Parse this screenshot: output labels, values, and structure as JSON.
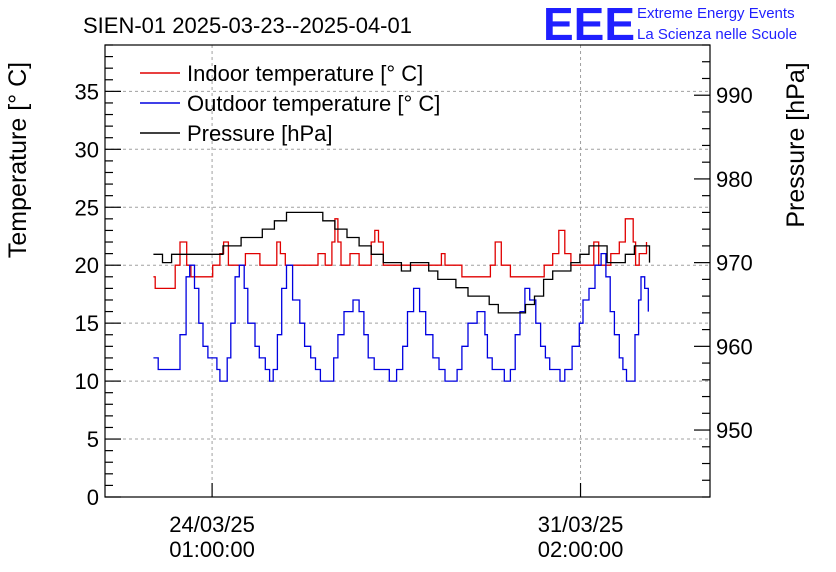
{
  "chart_data": {
    "type": "line",
    "title": "SIEN-01 2025-03-23--2025-04-01",
    "ylabel": "Temperature [° C]",
    "y2label": "Pressure [hPa]",
    "ylim": [
      0,
      39
    ],
    "y2lim": [
      942,
      996
    ],
    "xlim": [
      0,
      1
    ],
    "yticks": [
      0,
      5,
      10,
      15,
      20,
      25,
      30,
      35
    ],
    "y2ticks": [
      950,
      960,
      970,
      980,
      990
    ],
    "xticks": [
      {
        "pos": 0.177,
        "line1": "24/03/25",
        "line2": "01:00:00"
      },
      {
        "pos": 0.786,
        "line1": "31/03/25",
        "line2": "02:00:00"
      }
    ],
    "legend_position": "top-left",
    "logo": {
      "text": "EEE",
      "line1": "Extreme Energy Events",
      "line2": "La Scienza nelle Scuole"
    },
    "series": [
      {
        "name": "Indoor temperature [° C]",
        "color": "#e00000",
        "axis": "left",
        "x": [
          0.08,
          0.083,
          0.088,
          0.11,
          0.116,
          0.124,
          0.135,
          0.142,
          0.152,
          0.165,
          0.178,
          0.19,
          0.196,
          0.204,
          0.212,
          0.22,
          0.232,
          0.245,
          0.256,
          0.272,
          0.284,
          0.29,
          0.298,
          0.31,
          0.322,
          0.34,
          0.352,
          0.364,
          0.375,
          0.38,
          0.385,
          0.39,
          0.395,
          0.405,
          0.42,
          0.432,
          0.44,
          0.446,
          0.452,
          0.46,
          0.475,
          0.49,
          0.52,
          0.536,
          0.55,
          0.556,
          0.562,
          0.575,
          0.59,
          0.616,
          0.627,
          0.637,
          0.645,
          0.655,
          0.662,
          0.67,
          0.68,
          0.695,
          0.714,
          0.72,
          0.726,
          0.732,
          0.74,
          0.75,
          0.76,
          0.77,
          0.782,
          0.787,
          0.797,
          0.808,
          0.816,
          0.83,
          0.836,
          0.85,
          0.86,
          0.873,
          0.877,
          0.883,
          0.895
        ],
        "y": [
          19,
          18,
          18,
          18,
          20,
          22,
          20,
          19,
          19,
          19,
          20,
          21,
          22,
          20,
          20,
          20,
          21,
          21,
          20,
          20,
          22,
          21,
          20,
          20,
          20,
          20,
          21,
          20,
          22,
          24,
          22,
          20,
          20,
          21,
          20,
          20,
          22,
          23,
          22,
          20,
          20,
          20,
          20,
          20,
          20,
          21,
          20,
          20,
          19,
          19,
          19,
          20,
          22,
          20,
          20,
          19,
          19,
          19,
          19,
          19,
          20,
          20,
          21,
          23,
          21,
          20,
          20,
          20,
          20,
          22,
          20,
          20,
          21,
          22,
          24,
          22,
          20,
          21,
          22
        ]
      },
      {
        "name": "Outdoor temperature [° C]",
        "color": "#0000e0",
        "axis": "left",
        "x": [
          0.08,
          0.088,
          0.1,
          0.112,
          0.124,
          0.134,
          0.14,
          0.148,
          0.155,
          0.162,
          0.17,
          0.175,
          0.185,
          0.19,
          0.196,
          0.202,
          0.208,
          0.215,
          0.222,
          0.23,
          0.236,
          0.248,
          0.255,
          0.265,
          0.272,
          0.278,
          0.285,
          0.292,
          0.3,
          0.31,
          0.322,
          0.33,
          0.34,
          0.348,
          0.356,
          0.362,
          0.37,
          0.378,
          0.385,
          0.395,
          0.41,
          0.42,
          0.428,
          0.435,
          0.445,
          0.458,
          0.47,
          0.482,
          0.492,
          0.5,
          0.51,
          0.52,
          0.53,
          0.542,
          0.552,
          0.562,
          0.572,
          0.582,
          0.59,
          0.6,
          0.615,
          0.628,
          0.632,
          0.64,
          0.65,
          0.66,
          0.67,
          0.678,
          0.686,
          0.694,
          0.702,
          0.712,
          0.72,
          0.728,
          0.735,
          0.742,
          0.752,
          0.76,
          0.772,
          0.784,
          0.79,
          0.8,
          0.81,
          0.82,
          0.828,
          0.835,
          0.842,
          0.85,
          0.856,
          0.862,
          0.87,
          0.876,
          0.882,
          0.886,
          0.892,
          0.898
        ],
        "y": [
          12,
          11,
          11,
          11,
          14,
          19,
          20,
          18,
          15,
          13,
          12,
          12,
          11,
          10,
          10,
          12,
          15,
          19,
          20,
          18,
          15,
          13,
          12,
          11,
          10,
          11,
          14,
          18,
          20,
          17,
          15,
          13,
          12,
          11,
          10,
          10,
          10,
          12,
          14,
          16,
          17,
          16,
          14,
          12,
          11,
          11,
          10,
          11,
          13,
          16,
          18,
          16,
          14,
          12,
          11,
          10,
          10,
          11,
          13,
          15,
          16,
          14,
          12,
          11,
          11,
          10,
          11,
          14,
          16,
          18,
          17,
          15,
          13,
          12,
          11,
          11,
          10,
          11,
          13,
          15,
          17,
          18,
          20,
          21,
          19,
          16,
          14,
          12,
          11,
          10,
          10,
          14,
          17,
          19,
          18,
          16
        ]
      },
      {
        "name": "Pressure [hPa]",
        "color": "#000000",
        "axis": "right",
        "x": [
          0.08,
          0.095,
          0.11,
          0.125,
          0.14,
          0.16,
          0.175,
          0.195,
          0.21,
          0.225,
          0.24,
          0.26,
          0.28,
          0.3,
          0.32,
          0.34,
          0.36,
          0.38,
          0.4,
          0.42,
          0.44,
          0.46,
          0.475,
          0.49,
          0.505,
          0.52,
          0.535,
          0.55,
          0.565,
          0.58,
          0.6,
          0.62,
          0.635,
          0.65,
          0.665,
          0.68,
          0.695,
          0.71,
          0.725,
          0.74,
          0.755,
          0.77,
          0.785,
          0.8,
          0.815,
          0.83,
          0.845,
          0.86,
          0.875,
          0.89,
          0.9
        ],
        "y": [
          971,
          970,
          971,
          971,
          971,
          971,
          971,
          972,
          972,
          973,
          973,
          974,
          975,
          976,
          976,
          976,
          975,
          974,
          973,
          972,
          971,
          970,
          970,
          969,
          970,
          970,
          969,
          968,
          968,
          967,
          966,
          966,
          965,
          964,
          964,
          964,
          965,
          966,
          968,
          969,
          969,
          970,
          971,
          972,
          972,
          970,
          970,
          971,
          972,
          972,
          970
        ]
      }
    ]
  }
}
